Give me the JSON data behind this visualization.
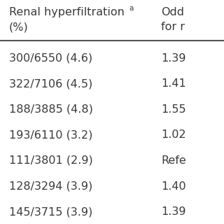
{
  "header_col1_line1": "Renal hyperfiltration",
  "header_col1_superscript": "a",
  "header_col1_line2": "(%)",
  "header_col2_line1": "Odd",
  "header_col2_line2": "for r",
  "col1_values": [
    "300/6550 (4.6)",
    "322/7106 (4.5)",
    "188/3885 (4.8)",
    "193/6110 (3.2)",
    "111/3801 (2.9)",
    "128/3294 (3.9)",
    "145/3715 (3.9)"
  ],
  "col2_values": [
    "1.39",
    "1.41",
    "1.55",
    "1.02",
    "Refe",
    "1.40",
    "1.39"
  ],
  "background_color": "#ffffff",
  "text_color": "#3a3a3a",
  "header_line_color": "#555555",
  "font_size": 11.5,
  "header_font_size": 11.5
}
